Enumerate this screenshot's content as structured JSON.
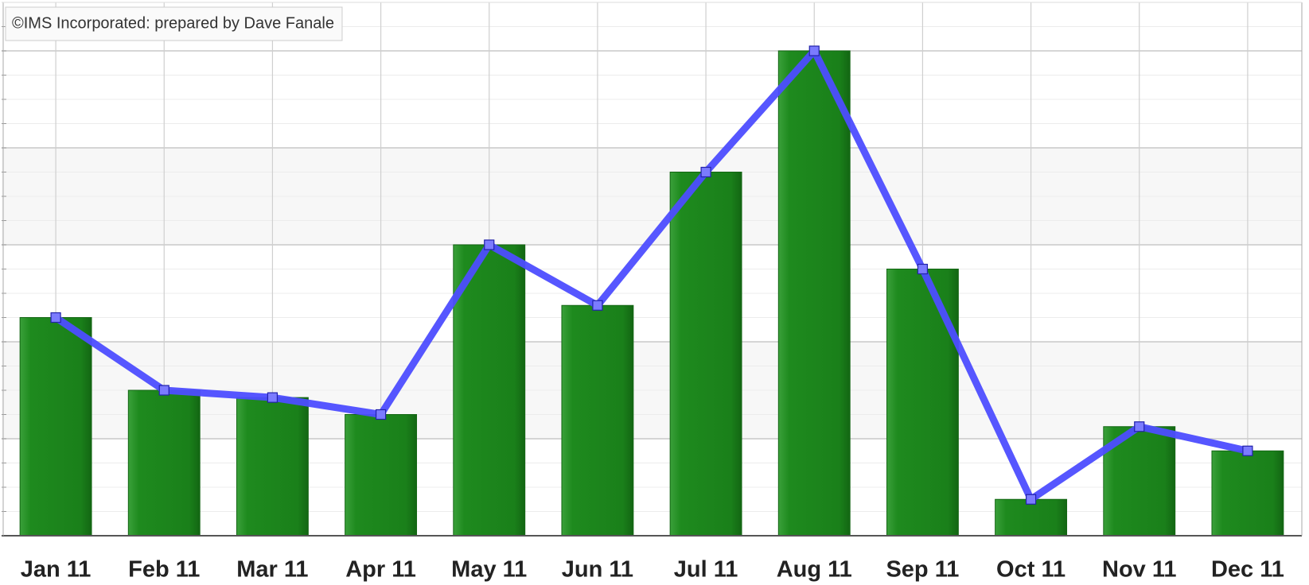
{
  "chart_data": {
    "type": "bar",
    "annotation": "©IMS Incorporated: prepared by Dave Fanale",
    "categories": [
      "Jan 11",
      "Feb 11",
      "Mar 11",
      "Apr 11",
      "May 11",
      "Jun 11",
      "Jul 11",
      "Aug 11",
      "Sep 11",
      "Oct 11",
      "Nov 11",
      "Dec 11"
    ],
    "series": [
      {
        "type": "bar",
        "color": "#1e8a1e",
        "values": [
          9,
          6,
          5.7,
          5,
          12,
          9.5,
          15,
          20,
          11,
          1.5,
          4.5,
          3.5
        ]
      },
      {
        "type": "line",
        "color": "#4d4dff",
        "values": [
          9,
          6,
          5.7,
          5,
          12,
          9.5,
          15,
          20,
          11,
          1.5,
          4.5,
          3.5
        ]
      }
    ],
    "ylim": [
      0,
      22
    ],
    "yticks": [
      0,
      1,
      2,
      3,
      4,
      5,
      6,
      7,
      8,
      9,
      10,
      11,
      12,
      13,
      14,
      15,
      16,
      17,
      18,
      19,
      20,
      21,
      22
    ],
    "grid": true
  }
}
